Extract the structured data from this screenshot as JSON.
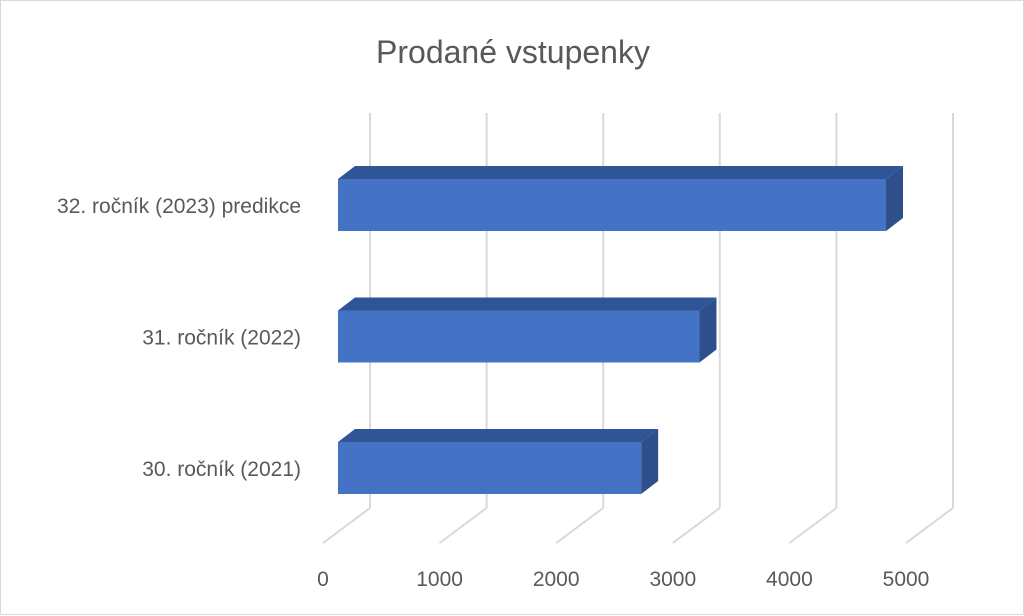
{
  "chart_data": {
    "type": "bar",
    "orientation": "horizontal",
    "style": "3d",
    "title": "Prodané vstupenky",
    "categories": [
      "30. ročník (2021)",
      "31. ročník (2022)",
      "32. ročník (2023) predikce"
    ],
    "values": [
      2600,
      3100,
      4700
    ],
    "xlim": [
      0,
      5000
    ],
    "xticks": [
      "0",
      "1000",
      "2000",
      "3000",
      "4000",
      "5000"
    ],
    "xlabel": "",
    "ylabel": "",
    "grid": true,
    "legend": "none",
    "colors": {
      "bar_front": "#4472c4",
      "bar_top": "#2f5597",
      "bar_side": "#2e4f8c",
      "grid": "#d9d9d9",
      "text": "#595959"
    }
  }
}
